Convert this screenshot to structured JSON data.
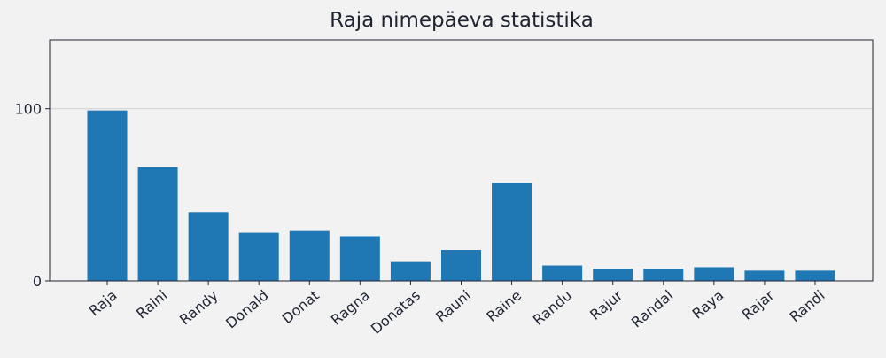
{
  "chart_data": {
    "type": "bar",
    "title": "Raja nimepäeva statistika",
    "xlabel": "",
    "ylabel": "",
    "categories": [
      "Raja",
      "Raini",
      "Randy",
      "Donald",
      "Donat",
      "Ragna",
      "Donatas",
      "Rauni",
      "Raine",
      "Randu",
      "Rajur",
      "Randal",
      "Raya",
      "Rajar",
      "Randi"
    ],
    "values": [
      99,
      66,
      40,
      28,
      29,
      26,
      11,
      18,
      57,
      9,
      7,
      7,
      8,
      6,
      6
    ],
    "ylim": [
      0,
      140
    ],
    "yticks": [
      0,
      100
    ],
    "grid": "horizontal",
    "colors": {
      "bar": "#1f77b4",
      "background": "#f2f2f2",
      "axis": "#1f2433",
      "grid": "#d0d0d0"
    }
  }
}
